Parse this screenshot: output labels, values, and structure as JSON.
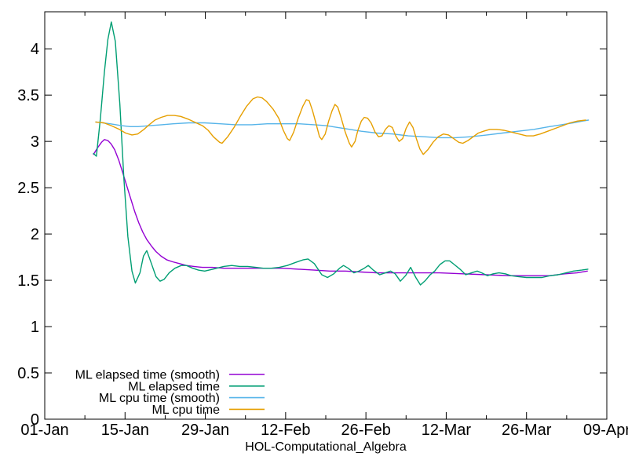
{
  "chart_data": {
    "type": "line",
    "title": "",
    "xlabel": "HOL-Computational_Algebra",
    "ylabel": "",
    "grid": false,
    "background": "#ffffff",
    "border_color": "#000000",
    "legend_position": "bottom-left-inside",
    "x_axis": {
      "range_days": [
        0,
        98
      ],
      "tick_labels": [
        "01-Jan",
        "15-Jan",
        "29-Jan",
        "12-Feb",
        "26-Feb",
        "12-Mar",
        "26-Mar",
        "09-Apr"
      ],
      "tick_days": [
        0,
        14,
        28,
        42,
        56,
        70,
        84,
        98
      ],
      "minor_tick_days": [
        7,
        21,
        35,
        49,
        63,
        77,
        91
      ]
    },
    "y_axis": {
      "range": [
        0,
        4.4
      ],
      "tick_labels": [
        "0",
        "0.5",
        "1",
        "1.5",
        "2",
        "2.5",
        "3",
        "3.5",
        "4"
      ],
      "tick_values": [
        0,
        0.5,
        1,
        1.5,
        2,
        2.5,
        3,
        3.5,
        4
      ]
    },
    "series": [
      {
        "name": "ML elapsed time (smooth)",
        "color": "#9400D3",
        "points": [
          [
            8.5,
            2.86
          ],
          [
            9.2,
            2.93
          ],
          [
            9.9,
            2.99
          ],
          [
            10.4,
            3.02
          ],
          [
            11.0,
            3.01
          ],
          [
            11.6,
            2.97
          ],
          [
            12.2,
            2.91
          ],
          [
            12.9,
            2.8
          ],
          [
            13.6,
            2.66
          ],
          [
            14.3,
            2.52
          ],
          [
            15.0,
            2.38
          ],
          [
            15.7,
            2.24
          ],
          [
            16.4,
            2.12
          ],
          [
            17.1,
            2.02
          ],
          [
            17.8,
            1.94
          ],
          [
            18.6,
            1.87
          ],
          [
            19.4,
            1.81
          ],
          [
            20.3,
            1.76
          ],
          [
            21.3,
            1.72
          ],
          [
            22.3,
            1.7
          ],
          [
            23.5,
            1.68
          ],
          [
            24.7,
            1.66
          ],
          [
            26.0,
            1.65
          ],
          [
            27.5,
            1.64
          ],
          [
            29.2,
            1.64
          ],
          [
            31.2,
            1.63
          ],
          [
            33.5,
            1.63
          ],
          [
            36.0,
            1.63
          ],
          [
            38.7,
            1.63
          ],
          [
            41.5,
            1.63
          ],
          [
            44.2,
            1.62
          ],
          [
            47.0,
            1.61
          ],
          [
            49.7,
            1.6
          ],
          [
            52.4,
            1.6
          ],
          [
            55.2,
            1.59
          ],
          [
            57.9,
            1.58
          ],
          [
            60.6,
            1.58
          ],
          [
            64.7,
            1.58
          ],
          [
            68.8,
            1.58
          ],
          [
            72.9,
            1.57
          ],
          [
            77.0,
            1.56
          ],
          [
            81.1,
            1.55
          ],
          [
            85.2,
            1.55
          ],
          [
            88.0,
            1.55
          ],
          [
            90.7,
            1.57
          ],
          [
            92.8,
            1.58
          ],
          [
            94.6,
            1.6
          ]
        ]
      },
      {
        "name": "ML elapsed time",
        "color": "#009E73",
        "points": [
          [
            8.5,
            2.87
          ],
          [
            9.0,
            2.84
          ],
          [
            9.7,
            3.25
          ],
          [
            10.4,
            3.75
          ],
          [
            11.0,
            4.1
          ],
          [
            11.6,
            4.29
          ],
          [
            12.3,
            4.08
          ],
          [
            13.1,
            3.4
          ],
          [
            13.8,
            2.6
          ],
          [
            14.5,
            1.97
          ],
          [
            15.2,
            1.6
          ],
          [
            15.8,
            1.47
          ],
          [
            16.6,
            1.58
          ],
          [
            17.2,
            1.76
          ],
          [
            17.8,
            1.82
          ],
          [
            18.6,
            1.68
          ],
          [
            19.4,
            1.54
          ],
          [
            20.1,
            1.49
          ],
          [
            20.8,
            1.51
          ],
          [
            21.7,
            1.58
          ],
          [
            22.7,
            1.63
          ],
          [
            23.8,
            1.66
          ],
          [
            24.7,
            1.66
          ],
          [
            25.8,
            1.63
          ],
          [
            26.8,
            1.61
          ],
          [
            27.9,
            1.6
          ],
          [
            29.3,
            1.62
          ],
          [
            31.2,
            1.65
          ],
          [
            32.6,
            1.66
          ],
          [
            34.0,
            1.65
          ],
          [
            35.4,
            1.65
          ],
          [
            36.8,
            1.64
          ],
          [
            38.1,
            1.63
          ],
          [
            39.5,
            1.63
          ],
          [
            40.9,
            1.64
          ],
          [
            42.3,
            1.66
          ],
          [
            43.6,
            1.69
          ],
          [
            45.0,
            1.72
          ],
          [
            45.9,
            1.73
          ],
          [
            47.0,
            1.68
          ],
          [
            48.3,
            1.56
          ],
          [
            49.3,
            1.53
          ],
          [
            50.4,
            1.57
          ],
          [
            51.4,
            1.63
          ],
          [
            52.1,
            1.66
          ],
          [
            52.9,
            1.63
          ],
          [
            53.9,
            1.58
          ],
          [
            54.8,
            1.6
          ],
          [
            55.7,
            1.63
          ],
          [
            56.4,
            1.66
          ],
          [
            57.3,
            1.61
          ],
          [
            58.4,
            1.56
          ],
          [
            59.4,
            1.58
          ],
          [
            60.3,
            1.6
          ],
          [
            61.1,
            1.57
          ],
          [
            62.0,
            1.49
          ],
          [
            62.9,
            1.55
          ],
          [
            63.8,
            1.64
          ],
          [
            64.7,
            1.53
          ],
          [
            65.5,
            1.45
          ],
          [
            66.4,
            1.5
          ],
          [
            67.2,
            1.56
          ],
          [
            68.0,
            1.6
          ],
          [
            68.9,
            1.67
          ],
          [
            69.8,
            1.71
          ],
          [
            70.6,
            1.71
          ],
          [
            71.4,
            1.67
          ],
          [
            72.4,
            1.62
          ],
          [
            73.4,
            1.56
          ],
          [
            74.4,
            1.58
          ],
          [
            75.4,
            1.6
          ],
          [
            76.2,
            1.58
          ],
          [
            77.2,
            1.55
          ],
          [
            78.2,
            1.57
          ],
          [
            79.2,
            1.58
          ],
          [
            80.3,
            1.57
          ],
          [
            81.3,
            1.55
          ],
          [
            82.6,
            1.54
          ],
          [
            84.0,
            1.53
          ],
          [
            85.4,
            1.53
          ],
          [
            86.7,
            1.53
          ],
          [
            88.1,
            1.55
          ],
          [
            89.5,
            1.56
          ],
          [
            90.9,
            1.58
          ],
          [
            92.2,
            1.6
          ],
          [
            93.6,
            1.61
          ],
          [
            94.7,
            1.62
          ]
        ]
      },
      {
        "name": "ML cpu time (smooth)",
        "color": "#56B4E9",
        "points": [
          [
            8.9,
            3.21
          ],
          [
            11.4,
            3.19
          ],
          [
            13.4,
            3.17
          ],
          [
            14.9,
            3.16
          ],
          [
            16.3,
            3.16
          ],
          [
            18.3,
            3.17
          ],
          [
            20.4,
            3.18
          ],
          [
            22.4,
            3.19
          ],
          [
            25.1,
            3.2
          ],
          [
            27.9,
            3.2
          ],
          [
            30.6,
            3.19
          ],
          [
            33.3,
            3.18
          ],
          [
            36.1,
            3.18
          ],
          [
            38.8,
            3.19
          ],
          [
            41.5,
            3.19
          ],
          [
            44.3,
            3.19
          ],
          [
            47.0,
            3.18
          ],
          [
            49.1,
            3.17
          ],
          [
            51.1,
            3.15
          ],
          [
            53.2,
            3.13
          ],
          [
            55.2,
            3.11
          ],
          [
            57.9,
            3.09
          ],
          [
            60.7,
            3.08
          ],
          [
            63.4,
            3.06
          ],
          [
            66.1,
            3.05
          ],
          [
            68.9,
            3.04
          ],
          [
            71.6,
            3.04
          ],
          [
            74.3,
            3.05
          ],
          [
            77.1,
            3.07
          ],
          [
            79.8,
            3.09
          ],
          [
            82.5,
            3.11
          ],
          [
            85.3,
            3.13
          ],
          [
            88.0,
            3.16
          ],
          [
            90.1,
            3.18
          ],
          [
            92.1,
            3.2
          ],
          [
            93.8,
            3.22
          ],
          [
            94.8,
            3.23
          ]
        ]
      },
      {
        "name": "ML cpu time",
        "color": "#E69F00",
        "points": [
          [
            8.9,
            3.21
          ],
          [
            10.3,
            3.2
          ],
          [
            11.6,
            3.17
          ],
          [
            13.0,
            3.13
          ],
          [
            14.1,
            3.09
          ],
          [
            15.2,
            3.07
          ],
          [
            16.2,
            3.08
          ],
          [
            17.3,
            3.13
          ],
          [
            18.2,
            3.18
          ],
          [
            19.2,
            3.23
          ],
          [
            20.3,
            3.26
          ],
          [
            21.4,
            3.28
          ],
          [
            22.6,
            3.28
          ],
          [
            23.7,
            3.27
          ],
          [
            25.0,
            3.24
          ],
          [
            26.4,
            3.2
          ],
          [
            27.5,
            3.17
          ],
          [
            28.5,
            3.12
          ],
          [
            29.4,
            3.05
          ],
          [
            30.5,
            2.99
          ],
          [
            30.9,
            2.98
          ],
          [
            31.9,
            3.05
          ],
          [
            33.0,
            3.15
          ],
          [
            34.1,
            3.27
          ],
          [
            35.2,
            3.38
          ],
          [
            36.3,
            3.46
          ],
          [
            37.1,
            3.48
          ],
          [
            37.9,
            3.47
          ],
          [
            38.7,
            3.43
          ],
          [
            39.8,
            3.35
          ],
          [
            40.8,
            3.25
          ],
          [
            41.6,
            3.12
          ],
          [
            42.3,
            3.03
          ],
          [
            42.7,
            3.01
          ],
          [
            43.4,
            3.1
          ],
          [
            44.2,
            3.25
          ],
          [
            45.0,
            3.38
          ],
          [
            45.6,
            3.45
          ],
          [
            46.1,
            3.44
          ],
          [
            46.7,
            3.33
          ],
          [
            47.4,
            3.17
          ],
          [
            47.9,
            3.05
          ],
          [
            48.3,
            3.02
          ],
          [
            48.9,
            3.08
          ],
          [
            49.5,
            3.22
          ],
          [
            50.1,
            3.33
          ],
          [
            50.6,
            3.4
          ],
          [
            51.1,
            3.37
          ],
          [
            51.7,
            3.25
          ],
          [
            52.4,
            3.1
          ],
          [
            53.1,
            2.98
          ],
          [
            53.5,
            2.94
          ],
          [
            54.1,
            3.0
          ],
          [
            54.6,
            3.12
          ],
          [
            55.2,
            3.22
          ],
          [
            55.7,
            3.26
          ],
          [
            56.3,
            3.25
          ],
          [
            56.9,
            3.2
          ],
          [
            57.6,
            3.1
          ],
          [
            58.2,
            3.05
          ],
          [
            58.8,
            3.06
          ],
          [
            59.4,
            3.13
          ],
          [
            60.0,
            3.17
          ],
          [
            60.6,
            3.15
          ],
          [
            61.2,
            3.06
          ],
          [
            61.8,
            3.0
          ],
          [
            62.4,
            3.03
          ],
          [
            63.0,
            3.14
          ],
          [
            63.6,
            3.21
          ],
          [
            64.2,
            3.15
          ],
          [
            64.8,
            3.03
          ],
          [
            65.4,
            2.92
          ],
          [
            66.0,
            2.86
          ],
          [
            66.8,
            2.91
          ],
          [
            67.7,
            2.99
          ],
          [
            68.6,
            3.05
          ],
          [
            69.5,
            3.08
          ],
          [
            70.4,
            3.07
          ],
          [
            71.3,
            3.03
          ],
          [
            72.2,
            2.99
          ],
          [
            72.9,
            2.98
          ],
          [
            73.8,
            3.01
          ],
          [
            74.7,
            3.05
          ],
          [
            75.6,
            3.09
          ],
          [
            76.5,
            3.11
          ],
          [
            77.6,
            3.13
          ],
          [
            78.8,
            3.13
          ],
          [
            80.1,
            3.12
          ],
          [
            81.4,
            3.1
          ],
          [
            82.7,
            3.08
          ],
          [
            84.0,
            3.06
          ],
          [
            85.2,
            3.06
          ],
          [
            86.4,
            3.08
          ],
          [
            87.7,
            3.11
          ],
          [
            89.0,
            3.14
          ],
          [
            90.3,
            3.17
          ],
          [
            91.6,
            3.2
          ],
          [
            92.9,
            3.22
          ],
          [
            94.3,
            3.23
          ]
        ]
      }
    ]
  }
}
